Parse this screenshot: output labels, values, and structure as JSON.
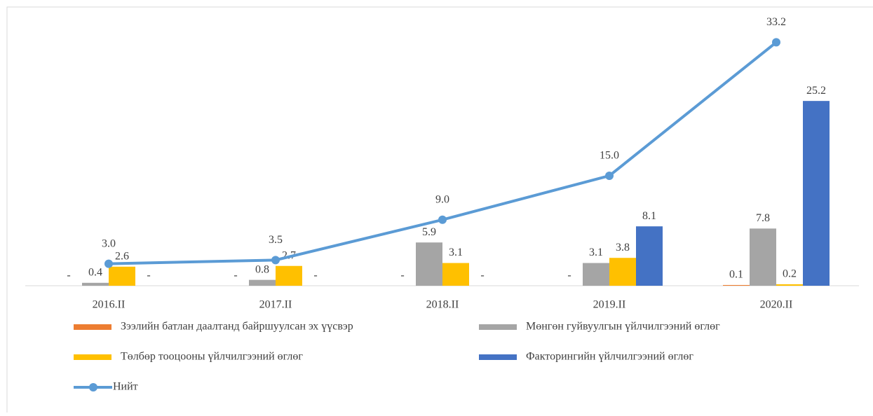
{
  "chart_data": {
    "type": "bar",
    "categories": [
      "2016.II",
      "2017.II",
      "2018.II",
      "2019.II",
      "2020.II"
    ],
    "series": [
      {
        "name": "Зээлийн батлан даалтанд байршуулсан эх үүсвэр",
        "color": "#ed7d31",
        "values": [
          0,
          0,
          0,
          0,
          0.1
        ],
        "value_labels": [
          "-",
          "-",
          "-",
          "-",
          "0.1"
        ]
      },
      {
        "name": "Мөнгөн гуйвуулгын үйлчилгээний өглөг",
        "color": "#a5a5a5",
        "values": [
          0.4,
          0.8,
          5.9,
          3.1,
          7.8
        ]
      },
      {
        "name": "Төлбөр тооцооны үйлчилгээний өглөг",
        "color": "#ffc000",
        "values": [
          2.6,
          2.7,
          3.1,
          3.8,
          0.2
        ]
      },
      {
        "name": "Факторингийн үйлчилгээний өглөг",
        "color": "#4472c4",
        "values": [
          0,
          0,
          0,
          8.1,
          25.2
        ],
        "value_labels": [
          "-",
          "-",
          "-",
          "8.1",
          "25.2"
        ]
      },
      {
        "name": "Нийт",
        "type": "line",
        "color": "#5b9bd5",
        "values": [
          3.0,
          3.5,
          9.0,
          15.0,
          33.2
        ],
        "value_labels": [
          "3.0",
          "3.5",
          "9.0",
          "15.0",
          "33.2"
        ]
      }
    ]
  }
}
